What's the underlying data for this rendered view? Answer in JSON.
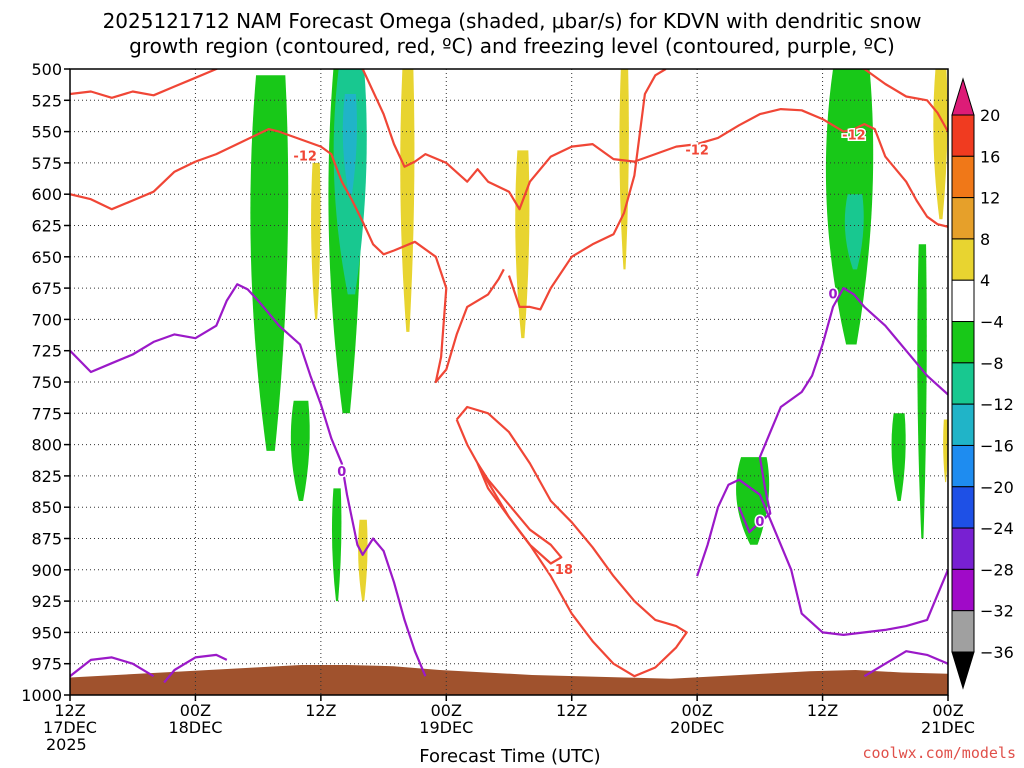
{
  "chart_data": {
    "type": "time-height cross section",
    "title_line1": "2025121712 NAM Forecast Omega (shaded, μbar/s) for KDVN with dendritic snow",
    "title_line2": "growth region (contoured, red, ºC) and freezing level (contoured, purple, ºC)",
    "xlabel": "Forecast Time (UTC)",
    "credit": "coolwx.com/models",
    "y_levels": [
      500,
      525,
      550,
      575,
      600,
      625,
      650,
      675,
      700,
      725,
      750,
      775,
      800,
      825,
      850,
      875,
      900,
      925,
      950,
      975,
      1000
    ],
    "y_unit": "hPa",
    "x_ticks": [
      {
        "hour": 0,
        "line1": "12Z",
        "line2": "17DEC",
        "line3": "2025"
      },
      {
        "hour": 12,
        "line1": "00Z",
        "line2": "18DEC",
        "line3": ""
      },
      {
        "hour": 24,
        "line1": "12Z",
        "line2": "",
        "line3": ""
      },
      {
        "hour": 36,
        "line1": "00Z",
        "line2": "19DEC",
        "line3": ""
      },
      {
        "hour": 48,
        "line1": "12Z",
        "line2": "",
        "line3": ""
      },
      {
        "hour": 60,
        "line1": "00Z",
        "line2": "20DEC",
        "line3": ""
      },
      {
        "hour": 72,
        "line1": "12Z",
        "line2": "",
        "line3": ""
      },
      {
        "hour": 84,
        "line1": "00Z",
        "line2": "21DEC",
        "line3": ""
      }
    ],
    "x_range_hours": [
      0,
      84
    ],
    "colorbar": {
      "labels": [
        "20",
        "16",
        "12",
        "8",
        "4",
        "−4",
        "−8",
        "−12",
        "−16",
        "−20",
        "−24",
        "−28",
        "−32",
        "−36"
      ],
      "colors": [
        "#dd1c77",
        "#f03b20",
        "#f07818",
        "#e6a02a",
        "#e8d430",
        "#ffffff",
        "#18c818",
        "#18c890",
        "#20b4c8",
        "#1e8cf0",
        "#1e50e6",
        "#7820d2",
        "#a00ac8",
        "#a0a0a0",
        "#000000"
      ]
    },
    "omega_shading": [
      {
        "color": "#18c818",
        "hour_range": [
          17,
          21
        ],
        "pressure_range": [
          505,
          805
        ],
        "sign": "negative"
      },
      {
        "color": "#18c818",
        "hour_range": [
          24.5,
          28
        ],
        "pressure_range": [
          500,
          775
        ],
        "sign": "negative"
      },
      {
        "color": "#18c890",
        "hour_range": [
          25,
          28.5
        ],
        "pressure_range": [
          500,
          680
        ],
        "sign": "negative"
      },
      {
        "color": "#20b4c8",
        "hour_range": [
          26,
          27.5
        ],
        "pressure_range": [
          520,
          600
        ],
        "sign": "negative"
      },
      {
        "color": "#e8d430",
        "hour_range": [
          31.5,
          33
        ],
        "pressure_range": [
          500,
          710
        ],
        "sign": "positive"
      },
      {
        "color": "#e8d430",
        "hour_range": [
          23,
          24
        ],
        "pressure_range": [
          575,
          700
        ],
        "sign": "positive"
      },
      {
        "color": "#e8d430",
        "hour_range": [
          42.5,
          44
        ],
        "pressure_range": [
          565,
          715
        ],
        "sign": "positive"
      },
      {
        "color": "#e8d430",
        "hour_range": [
          52.5,
          53.5
        ],
        "pressure_range": [
          500,
          660
        ],
        "sign": "positive"
      },
      {
        "color": "#18c818",
        "hour_range": [
          21,
          23
        ],
        "pressure_range": [
          765,
          845
        ],
        "sign": "negative"
      },
      {
        "color": "#18c818",
        "hour_range": [
          25,
          26
        ],
        "pressure_range": [
          835,
          925
        ],
        "sign": "negative"
      },
      {
        "color": "#e8d430",
        "hour_range": [
          27.5,
          28.5
        ],
        "pressure_range": [
          860,
          925
        ],
        "sign": "positive"
      },
      {
        "color": "#18c818",
        "hour_range": [
          63.5,
          67
        ],
        "pressure_range": [
          810,
          880
        ],
        "sign": "negative"
      },
      {
        "color": "#18c818",
        "hour_range": [
          72,
          77
        ],
        "pressure_range": [
          500,
          720
        ],
        "sign": "negative"
      },
      {
        "color": "#18c890",
        "hour_range": [
          74,
          76
        ],
        "pressure_range": [
          600,
          660
        ],
        "sign": "negative"
      },
      {
        "color": "#18c818",
        "hour_range": [
          78.5,
          80
        ],
        "pressure_range": [
          775,
          845
        ],
        "sign": "negative"
      },
      {
        "color": "#18c818",
        "hour_range": [
          81,
          82
        ],
        "pressure_range": [
          640,
          875
        ],
        "sign": "negative"
      },
      {
        "color": "#e8d430",
        "hour_range": [
          82.5,
          84
        ],
        "pressure_range": [
          500,
          620
        ],
        "sign": "positive"
      },
      {
        "color": "#e8d430",
        "hour_range": [
          83.5,
          84
        ],
        "pressure_range": [
          780,
          830
        ],
        "sign": "positive"
      }
    ],
    "red_contours": [
      {
        "label": "-12",
        "label_at": {
          "hour": 22.5,
          "p": 570
        },
        "points": [
          [
            0,
            600
          ],
          [
            2,
            604
          ],
          [
            4,
            612
          ],
          [
            6,
            605
          ],
          [
            8,
            598
          ],
          [
            10,
            582
          ],
          [
            12,
            574
          ],
          [
            14,
            568
          ],
          [
            16,
            560
          ],
          [
            18,
            552
          ],
          [
            19,
            548
          ],
          [
            20,
            550
          ],
          [
            22,
            556
          ],
          [
            24,
            562
          ],
          [
            25,
            568
          ],
          [
            26,
            590
          ],
          [
            27,
            605
          ],
          [
            28,
            622
          ],
          [
            29,
            640
          ],
          [
            30,
            648
          ],
          [
            31,
            645
          ],
          [
            33,
            638
          ],
          [
            35,
            650
          ],
          [
            36,
            675
          ],
          [
            35.5,
            730
          ],
          [
            35,
            750
          ],
          [
            36,
            740
          ],
          [
            37,
            712
          ],
          [
            38,
            690
          ],
          [
            40,
            680
          ],
          [
            41,
            668
          ],
          [
            41.5,
            660
          ]
        ]
      },
      {
        "label": "",
        "points": [
          [
            0,
            520
          ],
          [
            2,
            518
          ],
          [
            4,
            523
          ],
          [
            6,
            518
          ],
          [
            8,
            521
          ],
          [
            10,
            514
          ],
          [
            12,
            507
          ],
          [
            14,
            500
          ],
          [
            15,
            495
          ]
        ]
      },
      {
        "label": "-12",
        "label_at": {
          "hour": 60,
          "p": 565
        },
        "points": [
          [
            28,
            500
          ],
          [
            30,
            536
          ],
          [
            31,
            560
          ],
          [
            32,
            578
          ],
          [
            33,
            574
          ],
          [
            34,
            568
          ],
          [
            36,
            575
          ],
          [
            38,
            590
          ],
          [
            39,
            580
          ],
          [
            40,
            590
          ],
          [
            42,
            598
          ],
          [
            43,
            612
          ],
          [
            44,
            590
          ],
          [
            46,
            570
          ],
          [
            48,
            562
          ],
          [
            50,
            560
          ],
          [
            52,
            572
          ],
          [
            54,
            574
          ],
          [
            56,
            568
          ],
          [
            58,
            562
          ],
          [
            60,
            560
          ],
          [
            62,
            555
          ],
          [
            64,
            545
          ],
          [
            66,
            536
          ],
          [
            68,
            532
          ],
          [
            70,
            533
          ],
          [
            72,
            540
          ],
          [
            73,
            545
          ],
          [
            74,
            550
          ],
          [
            75,
            548
          ],
          [
            76,
            544
          ],
          [
            77,
            548
          ],
          [
            78,
            570
          ],
          [
            80,
            590
          ],
          [
            81,
            605
          ],
          [
            82,
            618
          ],
          [
            83,
            624
          ],
          [
            84,
            626
          ]
        ]
      },
      {
        "label": "-12",
        "label_at": {
          "hour": 75,
          "p": 553
        },
        "points": [
          [
            73,
            495
          ],
          [
            76,
            500
          ],
          [
            78,
            512
          ],
          [
            80,
            522
          ],
          [
            82,
            525
          ],
          [
            83,
            535
          ],
          [
            84,
            550
          ]
        ]
      },
      {
        "label": "",
        "points": [
          [
            42,
            665
          ],
          [
            43,
            690
          ],
          [
            44,
            690
          ],
          [
            45,
            692
          ],
          [
            46,
            675
          ],
          [
            48,
            650
          ],
          [
            50,
            640
          ],
          [
            52,
            632
          ],
          [
            53,
            615
          ],
          [
            54,
            585
          ],
          [
            55,
            520
          ],
          [
            56,
            505
          ],
          [
            57,
            500
          ]
        ]
      },
      {
        "label": "",
        "points": [
          [
            37,
            780
          ],
          [
            38,
            800
          ],
          [
            40,
            830
          ],
          [
            42,
            858
          ],
          [
            44,
            880
          ],
          [
            46,
            905
          ],
          [
            48,
            935
          ],
          [
            50,
            957
          ],
          [
            52,
            975
          ],
          [
            54,
            985
          ],
          [
            56,
            978
          ],
          [
            58,
            962
          ],
          [
            59,
            950
          ],
          [
            58,
            945
          ],
          [
            56,
            940
          ],
          [
            54,
            925
          ],
          [
            52,
            905
          ],
          [
            50,
            882
          ],
          [
            48,
            862
          ],
          [
            46,
            845
          ],
          [
            44,
            815
          ],
          [
            42,
            790
          ],
          [
            40,
            775
          ],
          [
            38,
            770
          ],
          [
            37,
            780
          ]
        ]
      },
      {
        "label": "-18",
        "label_at": {
          "hour": 47,
          "p": 900
        },
        "points": [
          [
            39,
            815
          ],
          [
            40,
            835
          ],
          [
            42,
            858
          ],
          [
            44,
            880
          ],
          [
            46,
            895
          ],
          [
            47,
            890
          ],
          [
            46,
            880
          ],
          [
            44,
            868
          ],
          [
            42,
            848
          ],
          [
            40,
            828
          ],
          [
            39,
            815
          ]
        ]
      }
    ],
    "purple_contours": [
      {
        "label": "0",
        "label_at": {
          "hour": 26,
          "p": 822
        },
        "points": [
          [
            0,
            725
          ],
          [
            2,
            742
          ],
          [
            4,
            735
          ],
          [
            6,
            728
          ],
          [
            8,
            718
          ],
          [
            10,
            712
          ],
          [
            12,
            715
          ],
          [
            14,
            705
          ],
          [
            15,
            685
          ],
          [
            16,
            672
          ],
          [
            17,
            676
          ],
          [
            18,
            685
          ],
          [
            19,
            695
          ],
          [
            20,
            705
          ],
          [
            22,
            720
          ],
          [
            23,
            745
          ],
          [
            24,
            768
          ],
          [
            25,
            795
          ],
          [
            26,
            815
          ],
          [
            26.5,
            840
          ],
          [
            27,
            860
          ],
          [
            27.5,
            880
          ],
          [
            28,
            888
          ],
          [
            29,
            875
          ],
          [
            30,
            885
          ],
          [
            31,
            910
          ],
          [
            32,
            940
          ],
          [
            33,
            965
          ],
          [
            34,
            985
          ]
        ]
      },
      {
        "label": "0",
        "label_at": {
          "hour": 73,
          "p": 680
        },
        "points": [
          [
            60,
            905
          ],
          [
            61,
            880
          ],
          [
            62,
            850
          ],
          [
            63,
            832
          ],
          [
            64,
            828
          ],
          [
            66,
            840
          ],
          [
            67,
            860
          ],
          [
            68,
            880
          ],
          [
            69,
            900
          ],
          [
            70,
            935
          ],
          [
            72,
            950
          ],
          [
            74,
            952
          ],
          [
            76,
            950
          ],
          [
            78,
            948
          ],
          [
            80,
            945
          ],
          [
            82,
            940
          ],
          [
            83,
            920
          ],
          [
            84,
            900
          ]
        ]
      },
      {
        "label": "0",
        "label_at": {
          "hour": 66,
          "p": 862
        },
        "points": [
          [
            64,
            850
          ],
          [
            65,
            870
          ],
          [
            66,
            862
          ],
          [
            67,
            855
          ],
          [
            66.5,
            835
          ],
          [
            66,
            810
          ],
          [
            67,
            790
          ],
          [
            68,
            770
          ],
          [
            70,
            758
          ],
          [
            71,
            745
          ],
          [
            72,
            720
          ],
          [
            73,
            690
          ],
          [
            74,
            675
          ],
          [
            75,
            680
          ],
          [
            76,
            690
          ],
          [
            78,
            705
          ],
          [
            80,
            725
          ],
          [
            82,
            745
          ],
          [
            84,
            760
          ]
        ]
      },
      {
        "label": "",
        "points": [
          [
            0,
            985
          ],
          [
            2,
            972
          ],
          [
            4,
            970
          ],
          [
            6,
            975
          ],
          [
            8,
            985
          ]
        ]
      },
      {
        "label": "",
        "points": [
          [
            9,
            990
          ],
          [
            10,
            980
          ],
          [
            12,
            970
          ],
          [
            14,
            968
          ],
          [
            15,
            972
          ]
        ]
      },
      {
        "label": "",
        "points": [
          [
            76,
            985
          ],
          [
            78,
            975
          ],
          [
            80,
            965
          ],
          [
            82,
            968
          ],
          [
            84,
            975
          ]
        ]
      }
    ],
    "terrain": {
      "color": "#a0522d",
      "surface_p": [
        986,
        984,
        982,
        980,
        978,
        976,
        976,
        977,
        980,
        982,
        984,
        985,
        986,
        987,
        985,
        983,
        981,
        980,
        982,
        983
      ]
    }
  }
}
